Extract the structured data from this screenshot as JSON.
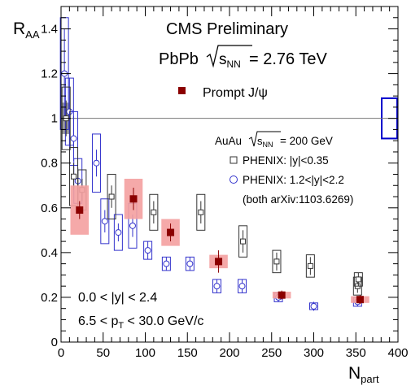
{
  "chart_data": {
    "type": "scatter",
    "xlabel_main": "N",
    "xlabel_sub": "part",
    "ylabel_main": "R",
    "ylabel_sub": "AA",
    "xlim": [
      0,
      400
    ],
    "ylim": [
      0,
      1.5
    ],
    "xticks": [
      0,
      50,
      100,
      150,
      200,
      250,
      300,
      350,
      400
    ],
    "yticks": [
      0,
      0.2,
      0.4,
      0.6,
      0.8,
      1,
      1.2,
      1.4
    ],
    "reference_line": 1,
    "title": "CMS Preliminary",
    "system_prefix": "PbPb ",
    "system_sqrt": "s",
    "system_sqrt_sub": "NN",
    "system_suffix": " = 2.76 TeV",
    "legend_cms": "Prompt J/ψ",
    "phenix_header_prefix": "AuAu ",
    "phenix_header_sqrt": "s",
    "phenix_header_sqrt_sub": "NN",
    "phenix_header_suffix": " = 200 GeV",
    "legend_phenix_mid": "PHENIX: |y|<0.35",
    "legend_phenix_fwd": "PHENIX: 1.2<|y|<2.2",
    "legend_ref": "(both arXiv:1103.6269)",
    "cut_rapidity": "0.0 < |y| < 2.4",
    "cut_pt_prefix": "6.5 < p",
    "cut_pt_sub": "T",
    "cut_pt_suffix": " < 30.0 GeV/c",
    "colors": {
      "cms": "#8b0000",
      "cms_syst": "#f4a0a0",
      "phenix_mid": "#333333",
      "phenix_fwd": "#3333cc",
      "norm_band": "#888888"
    },
    "series": [
      {
        "name": "Prompt J/ψ",
        "points": [
          {
            "x": 22,
            "y": 0.59,
            "stat": 0.04,
            "syst": 0.11,
            "xerr": 8
          },
          {
            "x": 86,
            "y": 0.64,
            "stat": 0.05,
            "syst": 0.09,
            "xerr": 8
          },
          {
            "x": 130,
            "y": 0.49,
            "stat": 0.04,
            "syst": 0.06,
            "xerr": 8
          },
          {
            "x": 187,
            "y": 0.36,
            "stat": 0.05,
            "syst": 0.03,
            "xerr": 8
          },
          {
            "x": 262,
            "y": 0.21,
            "stat": 0.02,
            "syst": 0.015,
            "xerr": 8
          },
          {
            "x": 355,
            "y": 0.19,
            "stat": 0.02,
            "syst": 0.015,
            "xerr": 8
          }
        ]
      },
      {
        "name": "PHENIX: |y|<0.35",
        "points": [
          {
            "x": 6,
            "y": 1.0,
            "stat": 0.08,
            "syst": 0.14
          },
          {
            "x": 15,
            "y": 0.74,
            "stat": 0.06,
            "syst": 0.13
          },
          {
            "x": 25,
            "y": 0.68,
            "stat": 0.05,
            "syst": 0.09
          },
          {
            "x": 60,
            "y": 0.65,
            "stat": 0.05,
            "syst": 0.1
          },
          {
            "x": 110,
            "y": 0.58,
            "stat": 0.05,
            "syst": 0.08
          },
          {
            "x": 166,
            "y": 0.58,
            "stat": 0.05,
            "syst": 0.08
          },
          {
            "x": 216,
            "y": 0.45,
            "stat": 0.05,
            "syst": 0.07
          },
          {
            "x": 256,
            "y": 0.36,
            "stat": 0.04,
            "syst": 0.05
          },
          {
            "x": 296,
            "y": 0.34,
            "stat": 0.04,
            "syst": 0.05
          },
          {
            "x": 352,
            "y": 0.25,
            "stat": 0.03,
            "syst": 0.04
          },
          {
            "x": 353,
            "y": 0.28,
            "stat": 0.03,
            "syst": 0.03
          }
        ]
      },
      {
        "name": "PHENIX: 1.2<|y|<2.2",
        "points": [
          {
            "x": 4,
            "y": 1.2,
            "stat": 0.2,
            "syst": 0.25
          },
          {
            "x": 10,
            "y": 1.03,
            "stat": 0.15,
            "syst": 0.15
          },
          {
            "x": 15,
            "y": 0.91,
            "stat": 0.1,
            "syst": 0.12
          },
          {
            "x": 20,
            "y": 0.72,
            "stat": 0.06,
            "syst": 0.1
          },
          {
            "x": 42,
            "y": 0.8,
            "stat": 0.06,
            "syst": 0.13
          },
          {
            "x": 52,
            "y": 0.54,
            "stat": 0.05,
            "syst": 0.1
          },
          {
            "x": 68,
            "y": 0.49,
            "stat": 0.04,
            "syst": 0.08
          },
          {
            "x": 85,
            "y": 0.52,
            "stat": 0.05,
            "syst": 0.1
          },
          {
            "x": 103,
            "y": 0.41,
            "stat": 0.04,
            "syst": 0.04
          },
          {
            "x": 125,
            "y": 0.35,
            "stat": 0.03,
            "syst": 0.03
          },
          {
            "x": 153,
            "y": 0.35,
            "stat": 0.03,
            "syst": 0.03
          },
          {
            "x": 185,
            "y": 0.25,
            "stat": 0.03,
            "syst": 0.03
          },
          {
            "x": 215,
            "y": 0.25,
            "stat": 0.03,
            "syst": 0.03
          },
          {
            "x": 258,
            "y": 0.2,
            "stat": 0.02,
            "syst": 0.02
          },
          {
            "x": 300,
            "y": 0.16,
            "stat": 0.02,
            "syst": 0.015
          },
          {
            "x": 352,
            "y": 0.18,
            "stat": 0.02,
            "syst": 0.02
          }
        ]
      }
    ]
  }
}
